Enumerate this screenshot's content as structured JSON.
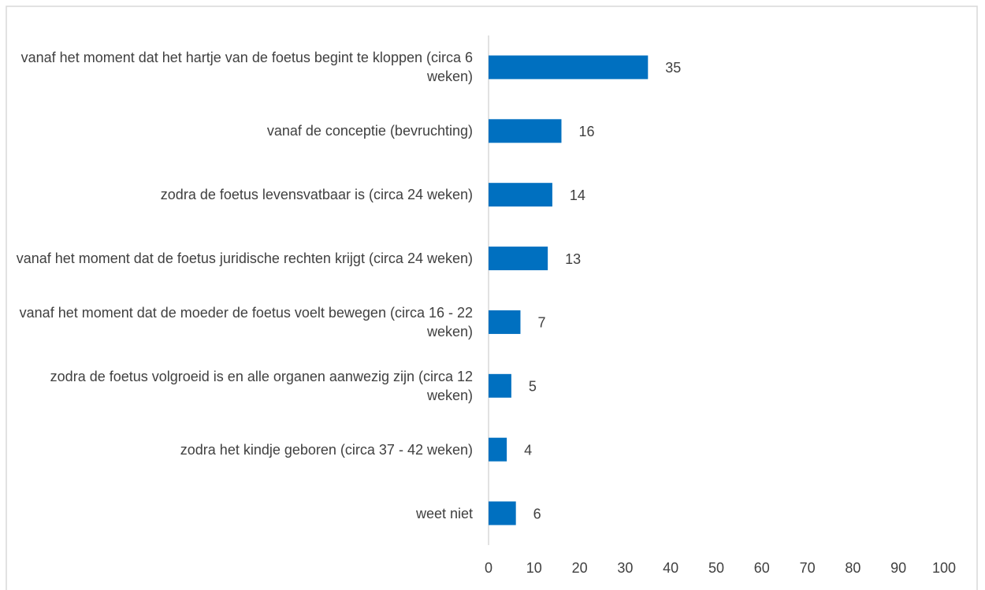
{
  "chart_data": {
    "type": "bar",
    "orientation": "horizontal",
    "categories": [
      "vanaf het moment dat het hartje van de foetus begint te kloppen (circa 6 weken)",
      "vanaf de conceptie (bevruchting)",
      "zodra de foetus levensvatbaar is (circa 24 weken)",
      "vanaf het moment dat de foetus juridische rechten krijgt (circa 24 weken)",
      "vanaf het moment dat de moeder de foetus voelt bewegen (circa 16 - 22 weken)",
      "zodra de foetus volgroeid is en alle organen aanwezig zijn (circa 12 weken)",
      "zodra het kindje geboren (circa 37 - 42 weken)",
      "weet niet"
    ],
    "values": [
      35,
      16,
      14,
      13,
      7,
      5,
      4,
      6
    ],
    "color": "#0070c0",
    "xlim": [
      0,
      100
    ],
    "xticks": [
      0,
      10,
      20,
      30,
      40,
      50,
      60,
      70,
      80,
      90,
      100
    ],
    "grid": false
  }
}
